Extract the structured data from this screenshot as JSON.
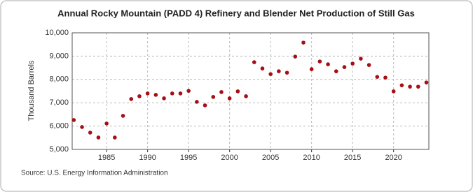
{
  "chart_data": {
    "type": "scatter",
    "title": "Annual Rocky Mountain (PADD 4) Refinery and Blender Net Production of Still Gas",
    "y_label": "Thousand Barrels",
    "source": "Source: U.S. Energy Information Administration",
    "series": [
      {
        "name": "Still Gas",
        "color": "#a50f15",
        "x": [
          1981,
          1982,
          1983,
          1984,
          1985,
          1986,
          1987,
          1988,
          1989,
          1990,
          1991,
          1992,
          1993,
          1994,
          1995,
          1996,
          1997,
          1998,
          1999,
          2000,
          2001,
          2002,
          2003,
          2004,
          2005,
          2006,
          2007,
          2008,
          2009,
          2010,
          2011,
          2012,
          2013,
          2014,
          2015,
          2016,
          2017,
          2018,
          2019,
          2020,
          2021,
          2022,
          2023,
          2024
        ],
        "values": [
          6260,
          5960,
          5720,
          5510,
          6110,
          5510,
          6440,
          7160,
          7280,
          7400,
          7340,
          7190,
          7400,
          7400,
          7510,
          7040,
          6890,
          7250,
          7460,
          7190,
          7490,
          7280,
          8740,
          8470,
          8230,
          8350,
          8290,
          8980,
          9580,
          8440,
          8770,
          8650,
          8350,
          8530,
          8680,
          8890,
          8620,
          8110,
          8080,
          7490,
          7750,
          7690,
          7690,
          7870
        ]
      }
    ],
    "xlim": [
      1980.8,
      2024.3
    ],
    "xticks": [
      1985,
      1990,
      1995,
      2000,
      2005,
      2010,
      2015,
      2020
    ],
    "ylim": [
      5000,
      10000
    ],
    "yticks": [
      {
        "value": 5000,
        "label": "5,000"
      },
      {
        "value": 6000,
        "label": "6,000"
      },
      {
        "value": 7000,
        "label": "7,000"
      },
      {
        "value": 8000,
        "label": "8,000"
      },
      {
        "value": 9000,
        "label": "9,000"
      },
      {
        "value": 10000,
        "label": "10,000"
      }
    ],
    "grid": true
  }
}
